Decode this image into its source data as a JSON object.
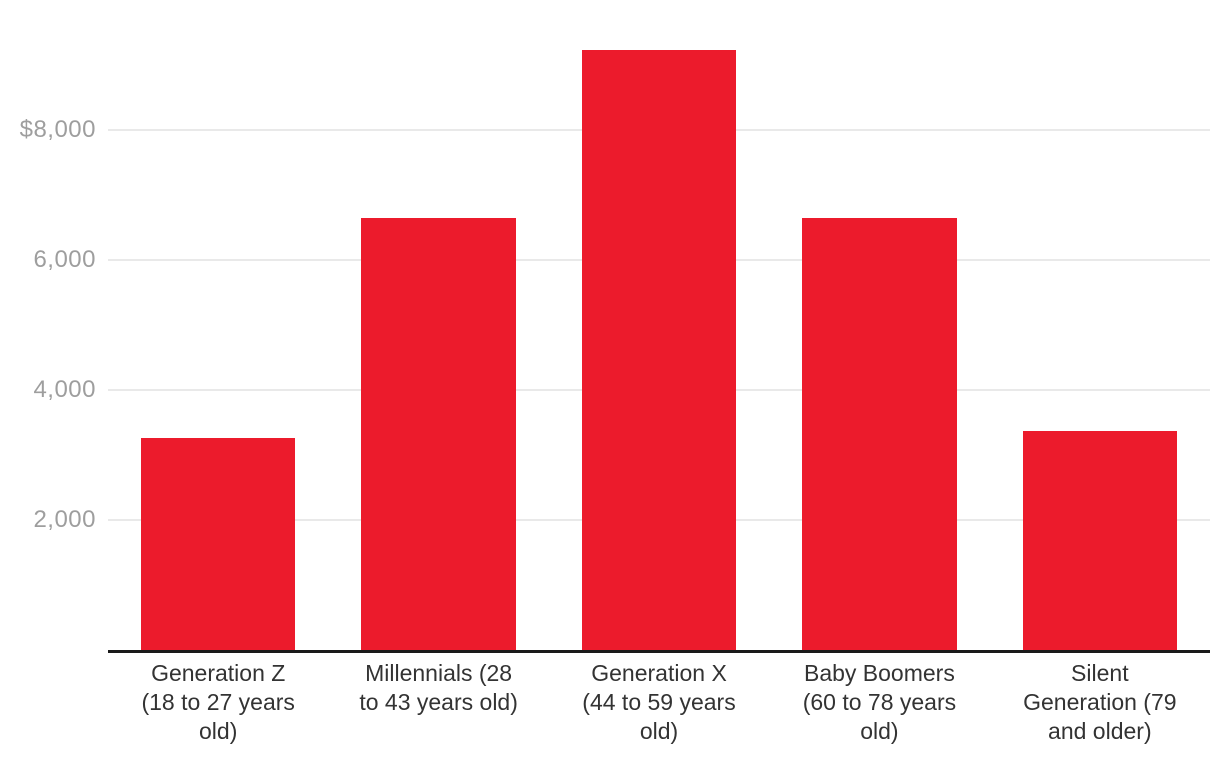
{
  "chart_data": {
    "type": "bar",
    "categories": [
      "Generation Z (18 to 27 years old)",
      "Millennials (28 to 43 years old)",
      "Generation X (44 to 59 years old)",
      "Baby Boomers (60 to 78 years old)",
      "Silent Generation (79 and older)"
    ],
    "category_lines": [
      [
        "Generation Z",
        "(18 to 27 years",
        "old)"
      ],
      [
        "Millennials (28",
        "to 43 years old)"
      ],
      [
        "Generation X",
        "(44 to 59 years",
        "old)"
      ],
      [
        "Baby Boomers",
        "(60 to 78 years",
        "old)"
      ],
      [
        "Silent",
        "Generation (79",
        "and older)"
      ]
    ],
    "values": [
      3260,
      6650,
      9230,
      6650,
      3370
    ],
    "yticks": [
      {
        "value": 8000,
        "label": "$8,000"
      },
      {
        "value": 6000,
        "label": "6,000"
      },
      {
        "value": 4000,
        "label": "4,000"
      },
      {
        "value": 2000,
        "label": "2,000"
      }
    ],
    "ylim": [
      0,
      10000
    ],
    "xlabel": "",
    "ylabel": "",
    "grid": "horizontal",
    "legend": "none",
    "bar_color": "#ec1b2c",
    "gridline_color": "#e9e9e9",
    "axis_color": "#1a1a1a",
    "ytick_color": "#9e9e9e",
    "xtick_color": "#333333"
  }
}
